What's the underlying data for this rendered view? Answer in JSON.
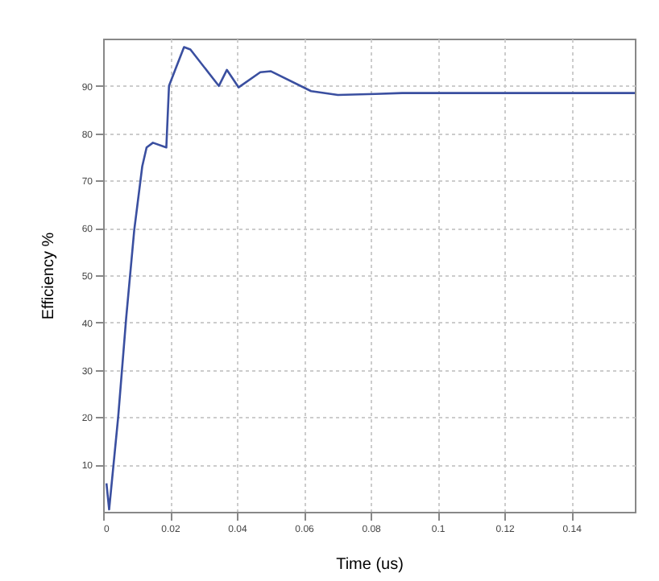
{
  "chart_data": {
    "type": "line",
    "xlabel": "Time (us)",
    "ylabel": "Efficiency %",
    "x": [
      0.001,
      0.0018,
      0.0045,
      0.0069,
      0.0093,
      0.0117,
      0.013,
      0.0149,
      0.0189,
      0.0197,
      0.0216,
      0.0242,
      0.0261,
      0.0346,
      0.037,
      0.0405,
      0.047,
      0.0502,
      0.0622,
      0.0702,
      0.0814,
      0.0894,
      0.159
    ],
    "series": [
      {
        "color": "#3a4fa0",
        "values": [
          6,
          0.5,
          20,
          41,
          59.5,
          73,
          77,
          78,
          77,
          90,
          93.5,
          98.2,
          97.7,
          90,
          93.4,
          89.7,
          92.9,
          93.1,
          88.9,
          88.1,
          88.3,
          88.5,
          88.5
        ]
      }
    ],
    "xlim": [
      0,
      0.159
    ],
    "xticks": [
      0,
      0.02,
      0.04,
      0.06,
      0.08,
      0.1,
      0.12,
      0.14
    ],
    "ylim": [
      0,
      100
    ],
    "yticks": [
      10,
      20,
      30,
      40,
      50,
      60,
      70,
      80,
      90
    ],
    "grid": true
  }
}
